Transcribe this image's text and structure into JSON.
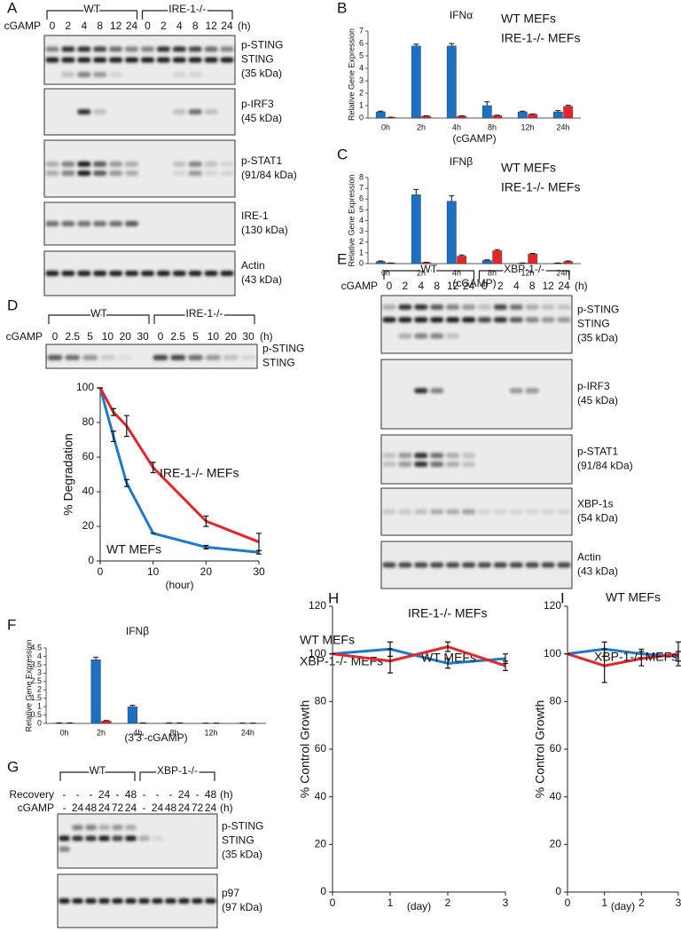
{
  "panel_letters": [
    "A",
    "B",
    "C",
    "D",
    "E",
    "F",
    "G",
    "H",
    "I"
  ],
  "blots": [
    {
      "groups": [
        "WT",
        "IRE-1-/-"
      ],
      "rows": [
        {
          "label": "cGAMP",
          "lanes": [
            "0",
            "2",
            "4",
            "8",
            "12",
            "24",
            "0",
            "2",
            "4",
            "8",
            "12",
            "24"
          ],
          "unit": "(h)"
        }
      ],
      "strips": [
        {
          "labels": [
            "p-STING",
            "STING",
            "(35 kDa)"
          ]
        },
        {
          "labels": [
            "p-IRF3",
            "(45 kDa)"
          ]
        },
        {
          "labels": [
            "p-STAT1",
            "(91/84 kDa)"
          ]
        },
        {
          "labels": [
            "IRE-1",
            "(130 kDa)"
          ]
        },
        {
          "labels": [
            "Actin",
            "(43 kDa)"
          ]
        }
      ]
    },
    {
      "groups": [
        "WT",
        "IRE-1-/-"
      ],
      "rows": [
        {
          "label": "cGAMP",
          "lanes": [
            "0",
            "2.5",
            "5",
            "10",
            "20",
            "30",
            "0",
            "2.5",
            "5",
            "10",
            "20",
            "30"
          ],
          "unit": "(h)"
        }
      ],
      "strips": [
        {
          "labels": [
            "p-STING",
            "STING"
          ]
        }
      ]
    },
    {
      "groups": [
        "WT",
        "XBP-1-/-"
      ],
      "rows": [
        {
          "label": "cGAMP",
          "lanes": [
            "0",
            "2",
            "4",
            "8",
            "12",
            "24",
            "0",
            "2",
            "4",
            "8",
            "12",
            "24"
          ],
          "unit": "(h)"
        }
      ],
      "strips": [
        {
          "labels": [
            "p-STING",
            "STING",
            "(35 kDa)"
          ]
        },
        {
          "labels": [
            "p-IRF3",
            "(45 kDa)"
          ]
        },
        {
          "labels": [
            "p-STAT1",
            "(91/84 kDa)"
          ]
        },
        {
          "labels": [
            "XBP-1s",
            "(54 kDa)"
          ]
        },
        {
          "labels": [
            "Actin",
            "(43 kDa)"
          ]
        }
      ]
    },
    {
      "groups": [
        "WT",
        "XBP-1-/-"
      ],
      "rows": [
        {
          "label": "Recovery",
          "lanes": [
            "-",
            "-",
            "-",
            "24",
            "-",
            "48",
            "-",
            "-",
            "-",
            "24",
            "-",
            "48"
          ],
          "unit": "(h)"
        },
        {
          "label": "cGAMP",
          "lanes": [
            "-",
            "24",
            "48",
            "24",
            "72",
            "24",
            "-",
            "24",
            "48",
            "24",
            "72",
            "24"
          ],
          "unit": "(h)"
        }
      ],
      "strips": [
        {
          "labels": [
            "p-STING",
            "STING",
            "(35 kDa)"
          ]
        },
        {
          "labels": [
            "p97",
            "(97 kDa)"
          ]
        }
      ]
    }
  ],
  "chart_data": [
    {
      "type": "bar",
      "title": "IFNα",
      "categories": [
        "0h",
        "2h",
        "4h",
        "8h",
        "12h",
        "24h"
      ],
      "series": [
        {
          "name": "WT MEFs",
          "color": "#1f6fc0",
          "values": [
            0.5,
            5.8,
            5.8,
            1.0,
            0.5,
            0.5
          ],
          "errors": [
            0.05,
            0.15,
            0.2,
            0.3,
            0.05,
            0.1
          ]
        },
        {
          "name": "IRE-1-/- MEFs",
          "color": "#e3262b",
          "values": [
            0.05,
            0.15,
            0.15,
            0.2,
            0.3,
            0.95
          ],
          "errors": [
            0.02,
            0.03,
            0.03,
            0.03,
            0.03,
            0.08
          ]
        }
      ],
      "ylim": [
        0,
        7
      ],
      "yticks": [
        0,
        1,
        2,
        3,
        4,
        5,
        6,
        7
      ],
      "y_label": "Relative Gene Expression",
      "x_label": "(cGAMP)"
    },
    {
      "type": "bar",
      "title": "IFNβ",
      "categories": [
        "0h",
        "2h",
        "4h",
        "8h",
        "12h",
        "24h"
      ],
      "series": [
        {
          "name": "WT MEFs",
          "color": "#1f6fc0",
          "values": [
            0.2,
            6.4,
            5.8,
            0.3,
            0.05,
            0.05
          ],
          "errors": [
            0.05,
            0.5,
            0.5,
            0.05,
            0.01,
            0.01
          ]
        },
        {
          "name": "IRE-1-/- MEFs",
          "color": "#e3262b",
          "values": [
            0.05,
            0.1,
            0.7,
            1.2,
            0.9,
            0.2
          ],
          "errors": [
            0.01,
            0.02,
            0.1,
            0.1,
            0.05,
            0.05
          ]
        }
      ],
      "ylim": [
        0,
        8
      ],
      "yticks": [
        0,
        1,
        2,
        3,
        4,
        5,
        6,
        7,
        8
      ],
      "y_label": "Relative Gene Expression",
      "x_label": "(cGAMP)"
    },
    {
      "type": "line",
      "x": [
        0,
        2.5,
        5,
        10,
        20,
        30
      ],
      "series": [
        {
          "name": "WT MEFs",
          "color": "#1f78c8",
          "values": [
            100,
            72,
            45,
            16,
            8,
            5
          ],
          "errors": [
            0,
            3,
            2,
            0,
            1,
            1
          ]
        },
        {
          "name": "IRE-1-/- MEFs",
          "color": "#e3262b",
          "values": [
            100,
            86,
            78,
            54,
            23,
            11
          ],
          "errors": [
            0,
            2,
            6,
            3,
            3,
            5
          ]
        }
      ],
      "xlim": [
        0,
        30
      ],
      "xticks": [
        0,
        10,
        20,
        30
      ],
      "ylim": [
        0,
        100
      ],
      "yticks": [
        0,
        20,
        40,
        60,
        80,
        100
      ],
      "y_label": "% Degradation",
      "x_label": "(hour)"
    },
    {
      "type": "bar",
      "title": "IFNβ",
      "categories": [
        "0h",
        "2h",
        "4h",
        "8h",
        "12h",
        "24h"
      ],
      "series": [
        {
          "name": "WT MEFs",
          "color": "#1f6fc0",
          "values": [
            0.02,
            3.8,
            1.0,
            0.02,
            0.01,
            0.01
          ],
          "errors": [
            0.01,
            0.15,
            0.08,
            0.01,
            0.01,
            0.01
          ]
        },
        {
          "name": "XBP-1-/- MEFs",
          "color": "#e3262b",
          "values": [
            0.02,
            0.15,
            0.02,
            0.02,
            0.01,
            0.01
          ],
          "errors": [
            0.01,
            0.02,
            0.01,
            0.01,
            0.01,
            0.01
          ]
        }
      ],
      "ylim": [
        0,
        4.5
      ],
      "yticks": [
        0,
        0.5,
        1,
        1.5,
        2,
        2.5,
        3,
        3.5,
        4,
        4.5
      ],
      "y_label": "Relative Gene Expression",
      "x_label": "(3'3'-cGAMP)"
    },
    {
      "type": "line",
      "x": [
        0,
        1,
        2,
        3
      ],
      "series": [
        {
          "name": "WT MEFs",
          "color": "#1f78c8",
          "values": [
            100,
            102,
            96,
            98
          ],
          "errors": [
            0,
            3,
            2,
            2
          ]
        },
        {
          "name": "IRE-1-/- MEFs",
          "color": "#e3262b",
          "values": [
            100,
            97,
            103,
            95
          ],
          "errors": [
            0,
            5,
            2,
            2
          ]
        }
      ],
      "xlim": [
        0,
        3
      ],
      "xticks": [
        0,
        1,
        2,
        3
      ],
      "ylim": [
        0,
        120
      ],
      "yticks": [
        0,
        20,
        40,
        60,
        80,
        100,
        120
      ],
      "y_label": "% Control Growth",
      "x_label": "(day)"
    },
    {
      "type": "line",
      "x": [
        0,
        1,
        2,
        3
      ],
      "series": [
        {
          "name": "WT MEFs",
          "color": "#1f78c8",
          "values": [
            100,
            102,
            100,
            99
          ],
          "errors": [
            0,
            3,
            2,
            2
          ]
        },
        {
          "name": "XBP-1-/- MEFs",
          "color": "#e3262b",
          "values": [
            100,
            95,
            98,
            100
          ],
          "errors": [
            0,
            7,
            3,
            5
          ]
        }
      ],
      "xlim": [
        0,
        3
      ],
      "xticks": [
        0,
        1,
        2,
        3
      ],
      "ylim": [
        0,
        120
      ],
      "yticks": [
        0,
        20,
        40,
        60,
        80,
        100,
        120
      ],
      "y_label": "% Control Growth",
      "x_label": "(day)"
    }
  ]
}
